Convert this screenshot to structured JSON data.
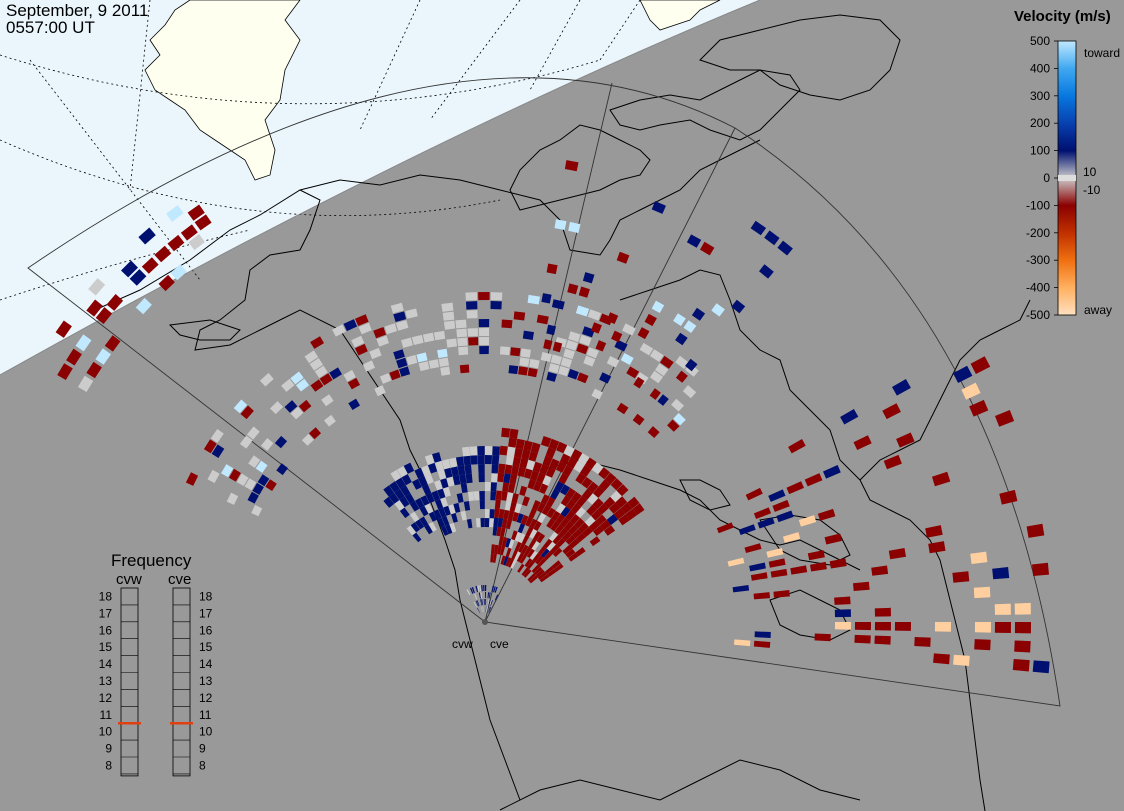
{
  "header": {
    "date": "September, 9 2011",
    "time": "0557:00 UT"
  },
  "velocity_scale": {
    "title": "Velocity (m/s)",
    "top_label": "toward",
    "bottom_label": "away",
    "left_ticks": [
      "500",
      "400",
      "300",
      "200",
      "100",
      "0",
      "-100",
      "-200",
      "-300",
      "-400",
      "-500"
    ],
    "right_ticks": [
      "10",
      "-10"
    ],
    "colors": [
      "#FFE0C0",
      "#FFB060",
      "#F07010",
      "#C03000",
      "#8B0000",
      "#CCCCCC",
      "#001070",
      "#0840B0",
      "#0878E0",
      "#40A8F0",
      "#C0E8FF"
    ]
  },
  "frequency_panel": {
    "title": "Frequency",
    "radars": [
      {
        "name": "cvw",
        "selected_mhz": 10.5
      },
      {
        "name": "cve",
        "selected_mhz": 10.5
      }
    ],
    "ticks": [
      "18",
      "17",
      "16",
      "15",
      "14",
      "13",
      "12",
      "11",
      "10",
      "9",
      "8"
    ],
    "indicator_color": "#E04010"
  },
  "map": {
    "radar_labels": [
      "cvw",
      "cve"
    ],
    "colors": {
      "land_day": "#FFFFF0",
      "land_night": "#999999",
      "ocean_day": "#EAF6FC",
      "coast": "#000000"
    }
  }
}
